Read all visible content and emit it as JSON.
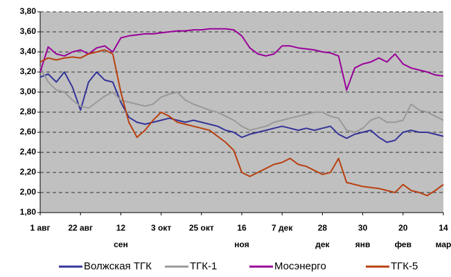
{
  "chart_data": {
    "type": "line",
    "x": [
      0,
      4,
      8,
      12,
      16,
      20,
      24,
      28,
      32,
      36,
      40,
      44,
      48,
      52,
      56,
      60,
      64,
      68,
      72,
      76,
      80,
      84,
      88,
      92,
      96,
      100,
      104,
      108,
      112,
      116,
      120,
      124,
      128,
      132,
      136,
      140,
      144,
      148,
      152,
      156,
      160,
      164,
      168,
      172,
      176,
      180,
      184,
      188,
      192,
      196,
      200
    ],
    "xlim": [
      0,
      200
    ],
    "xticks": [
      {
        "value": 0,
        "label": "1 авг"
      },
      {
        "value": 20,
        "label": "22 авг"
      },
      {
        "value": 40,
        "label": "12\nсен"
      },
      {
        "value": 60,
        "label": "3 окт"
      },
      {
        "value": 80,
        "label": "25 окт"
      },
      {
        "value": 100,
        "label": "16\nноя"
      },
      {
        "value": 120,
        "label": "7 дек"
      },
      {
        "value": 140,
        "label": "28\nдек"
      },
      {
        "value": 160,
        "label": "30\nянв"
      },
      {
        "value": 180,
        "label": "20\nфев"
      },
      {
        "value": 200,
        "label": "14\nмар"
      }
    ],
    "ylim": [
      1.8,
      3.8
    ],
    "yticks": [
      {
        "value": 1.8,
        "label": "1,80"
      },
      {
        "value": 2.0,
        "label": "2,00"
      },
      {
        "value": 2.2,
        "label": "2,20"
      },
      {
        "value": 2.4,
        "label": "2,40"
      },
      {
        "value": 2.6,
        "label": "2,60"
      },
      {
        "value": 2.8,
        "label": "2,80"
      },
      {
        "value": 3.0,
        "label": "3,00"
      },
      {
        "value": 3.2,
        "label": "3,20"
      },
      {
        "value": 3.4,
        "label": "3,40"
      },
      {
        "value": 3.6,
        "label": "3,60"
      },
      {
        "value": 3.8,
        "label": "3,80"
      }
    ],
    "grid": true,
    "legend": "bottom",
    "series": [
      {
        "name": "Волжская ТГК",
        "color": "#333399",
        "values": [
          3.15,
          3.18,
          3.1,
          3.2,
          3.05,
          2.82,
          3.1,
          3.2,
          3.12,
          3.1,
          2.9,
          2.75,
          2.7,
          2.68,
          2.7,
          2.72,
          2.74,
          2.72,
          2.7,
          2.72,
          2.7,
          2.68,
          2.66,
          2.62,
          2.6,
          2.55,
          2.58,
          2.6,
          2.62,
          2.64,
          2.66,
          2.64,
          2.62,
          2.64,
          2.62,
          2.64,
          2.66,
          2.58,
          2.54,
          2.58,
          2.6,
          2.62,
          2.55,
          2.5,
          2.52,
          2.6,
          2.62,
          2.6,
          2.6,
          2.58,
          2.56
        ]
      },
      {
        "name": "ТГК-1",
        "color": "#999999",
        "values": [
          3.25,
          3.1,
          3.02,
          3.0,
          2.92,
          2.86,
          2.84,
          2.9,
          2.96,
          3.0,
          2.92,
          2.9,
          2.88,
          2.86,
          2.88,
          2.95,
          2.98,
          3.0,
          2.92,
          2.88,
          2.85,
          2.82,
          2.8,
          2.76,
          2.72,
          2.66,
          2.62,
          2.64,
          2.66,
          2.7,
          2.72,
          2.74,
          2.76,
          2.78,
          2.8,
          2.8,
          2.76,
          2.74,
          2.62,
          2.6,
          2.64,
          2.72,
          2.75,
          2.7,
          2.7,
          2.72,
          2.88,
          2.82,
          2.8,
          2.76,
          2.72
        ]
      },
      {
        "name": "Мосэнерго",
        "color": "#990099",
        "values": [
          3.2,
          3.45,
          3.38,
          3.36,
          3.4,
          3.42,
          3.38,
          3.44,
          3.46,
          3.4,
          3.54,
          3.56,
          3.57,
          3.58,
          3.58,
          3.59,
          3.6,
          3.61,
          3.61,
          3.62,
          3.62,
          3.63,
          3.63,
          3.63,
          3.62,
          3.56,
          3.44,
          3.38,
          3.36,
          3.38,
          3.46,
          3.46,
          3.44,
          3.43,
          3.42,
          3.4,
          3.39,
          3.36,
          3.02,
          3.24,
          3.28,
          3.3,
          3.34,
          3.3,
          3.38,
          3.28,
          3.24,
          3.22,
          3.2,
          3.17,
          3.16
        ]
      },
      {
        "name": "ТГК-5",
        "color": "#b84010",
        "values": [
          3.3,
          3.34,
          3.32,
          3.34,
          3.35,
          3.34,
          3.38,
          3.4,
          3.42,
          3.38,
          3.0,
          2.7,
          2.55,
          2.62,
          2.72,
          2.8,
          2.76,
          2.7,
          2.68,
          2.66,
          2.64,
          2.62,
          2.56,
          2.5,
          2.42,
          2.2,
          2.16,
          2.2,
          2.24,
          2.28,
          2.3,
          2.34,
          2.28,
          2.26,
          2.22,
          2.18,
          2.2,
          2.34,
          2.1,
          2.08,
          2.06,
          2.05,
          2.04,
          2.02,
          2.0,
          2.08,
          2.02,
          2.0,
          1.97,
          2.02,
          2.08
        ]
      }
    ]
  }
}
